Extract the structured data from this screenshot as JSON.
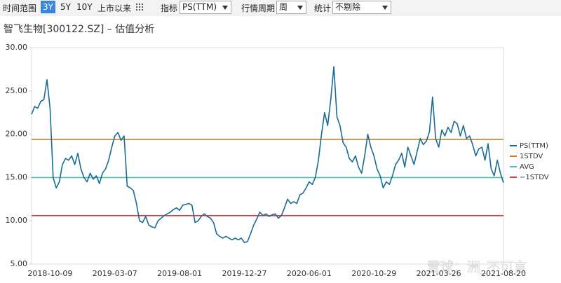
{
  "toolbar": {
    "range_label": "时间范围",
    "ranges": [
      "3Y",
      "5Y",
      "10Y",
      "上市以来"
    ],
    "indicator_label": "指标",
    "indicator": "PS(TTM)",
    "period_label": "行情周期",
    "period": "周",
    "stat_label": "统计",
    "stat": "不剔除"
  },
  "watermark": "雪球：洲_不可言",
  "chart_data": {
    "type": "line",
    "title": "智飞生物[300122.SZ] – 估值分析",
    "categories": [
      null,
      null,
      null,
      null,
      null,
      null,
      "2018-10-09",
      null,
      null,
      null,
      null,
      null,
      null,
      null,
      null,
      null,
      null,
      null,
      null,
      null,
      null,
      null,
      null,
      null,
      null,
      null,
      null,
      "2019-03-07",
      null,
      null,
      null,
      null,
      null,
      null,
      null,
      null,
      null,
      null,
      null,
      null,
      null,
      null,
      null,
      null,
      null,
      null,
      null,
      null,
      "2019-08-01",
      null,
      null,
      null,
      null,
      null,
      null,
      null,
      null,
      null,
      null,
      null,
      null,
      null,
      null,
      null,
      null,
      null,
      null,
      null,
      null,
      "2019-12-27",
      null,
      null,
      null,
      null,
      null,
      null,
      null,
      null,
      null,
      null,
      null,
      null,
      null,
      null,
      null,
      null,
      null,
      null,
      null,
      null,
      "2020-06-01",
      null,
      null,
      null,
      null,
      null,
      null,
      null,
      null,
      null,
      null,
      null,
      null,
      null,
      null,
      null,
      null,
      null,
      null,
      null,
      null,
      "2020-10-29",
      null,
      null,
      null,
      null,
      null,
      null,
      null,
      null,
      null,
      null,
      null,
      null,
      null,
      null,
      null,
      null,
      null,
      null,
      null,
      null,
      "2021-03-26",
      null,
      null,
      null,
      null,
      null,
      null,
      null,
      null,
      null,
      null,
      null,
      null,
      null,
      null,
      null,
      null,
      null,
      null,
      null,
      null,
      "2021-08-20"
    ],
    "series": [
      {
        "name": "PS(TTM)",
        "color": "#1a6b96",
        "values": [
          22.3,
          23.2,
          23.0,
          23.8,
          24.0,
          26.3,
          23.0,
          15.0,
          13.8,
          14.5,
          16.5,
          17.2,
          17.0,
          17.5,
          16.5,
          17.8,
          16.0,
          15.0,
          14.5,
          15.5,
          14.8,
          15.2,
          14.3,
          15.5,
          16.0,
          17.0,
          18.5,
          19.8,
          20.2,
          19.3,
          19.8,
          14.0,
          13.8,
          13.5,
          12.0,
          10.0,
          9.8,
          10.5,
          9.5,
          9.3,
          9.2,
          10.0,
          10.3,
          10.6,
          10.8,
          11.0,
          11.3,
          11.5,
          11.2,
          11.8,
          11.9,
          12.0,
          11.8,
          9.8,
          10.0,
          10.5,
          10.8,
          10.5,
          10.3,
          9.8,
          8.5,
          8.2,
          8.0,
          8.2,
          8.0,
          7.8,
          8.0,
          7.8,
          8.0,
          7.5,
          7.6,
          8.5,
          9.5,
          10.2,
          11.0,
          10.6,
          10.8,
          10.5,
          10.7,
          10.8,
          10.3,
          10.6,
          11.5,
          12.5,
          12.0,
          12.2,
          12.0,
          13.0,
          13.2,
          13.8,
          14.5,
          14.2,
          15.0,
          17.0,
          20.0,
          22.5,
          21.0,
          24.0,
          27.8,
          22.0,
          21.0,
          19.0,
          18.5,
          17.2,
          16.8,
          17.5,
          16.2,
          15.5,
          17.5,
          20.0,
          18.5,
          17.5,
          16.0,
          15.2,
          13.8,
          14.5,
          14.2,
          15.2,
          16.5,
          17.0,
          17.8,
          16.2,
          18.5,
          17.5,
          16.5,
          18.0,
          19.5,
          18.8,
          19.2,
          20.3,
          24.3,
          19.5,
          18.5,
          20.5,
          19.8,
          20.8,
          20.2,
          21.5,
          21.2,
          19.8,
          21.0,
          19.5,
          19.8,
          18.8,
          17.5,
          18.3,
          18.5,
          17.0,
          18.9,
          16.0,
          15.2,
          17.0,
          15.5,
          14.4
        ]
      },
      {
        "name": "1STDV",
        "color": "#e07b1a",
        "value": 19.4
      },
      {
        "name": "AVG",
        "color": "#4cc1b0",
        "value": 15.0
      },
      {
        "name": "−1STDV",
        "color": "#d93a3a",
        "value": 10.6
      }
    ],
    "ylim": [
      5,
      30
    ],
    "yticks": [
      {
        "value": 5,
        "label": "5.00"
      },
      {
        "value": 10,
        "label": "10.00"
      },
      {
        "value": 15,
        "label": "15.00"
      },
      {
        "value": 20,
        "label": "20.00"
      },
      {
        "value": 25,
        "label": "25.00"
      },
      {
        "value": 30,
        "label": "30.00"
      }
    ],
    "legend": "right"
  }
}
